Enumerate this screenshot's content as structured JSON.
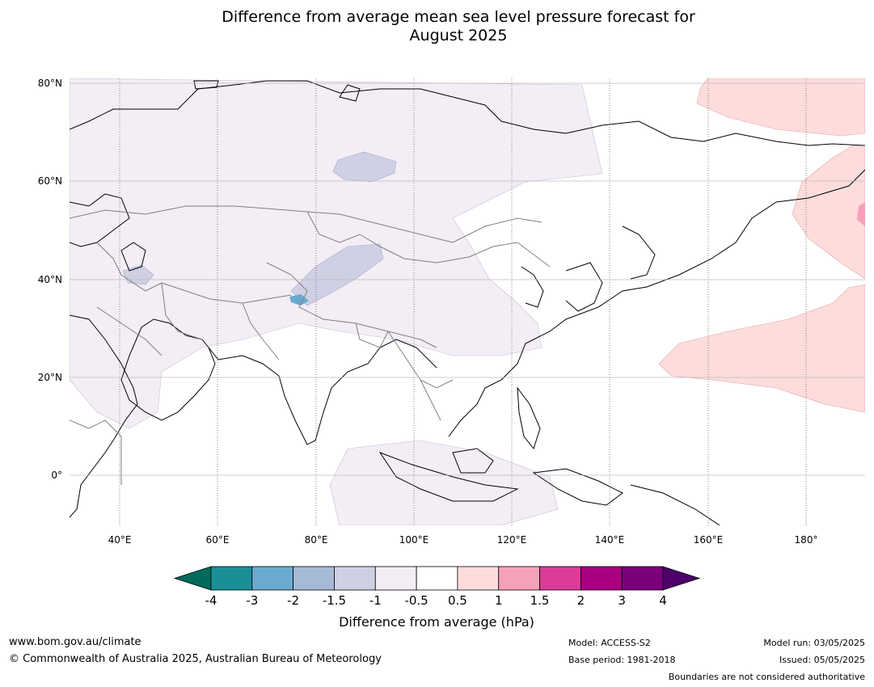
{
  "title_line1": "Difference from average mean sea level pressure forecast for",
  "title_line2": "August 2025",
  "map": {
    "lat_labels": [
      "80°N",
      "60°N",
      "40°N",
      "20°N",
      "0°"
    ],
    "lon_labels": [
      "40°E",
      "60°E",
      "80°E",
      "100°E",
      "120°E",
      "140°E",
      "160°E",
      "180°"
    ],
    "anomaly_regions": [
      {
        "name": "eurasia-negative",
        "level": "-0.5 to -1"
      },
      {
        "name": "siberia-negative",
        "level": "-1 to -1.5"
      },
      {
        "name": "central-asia-negative",
        "level": "-1 to -1.5"
      },
      {
        "name": "tibet-negative",
        "level": "-2 to -3"
      },
      {
        "name": "north-pacific-positive",
        "level": "0.5 to 1"
      },
      {
        "name": "western-pacific-positive",
        "level": "0.5 to 1"
      },
      {
        "name": "indian-ocean-negative",
        "level": "-0.5 to -1"
      }
    ]
  },
  "colorbar": {
    "title": "Difference from average (hPa)",
    "tick_labels": [
      "-4",
      "-3",
      "-2",
      "-1.5",
      "-1",
      "-0.5",
      "0.5",
      "1",
      "1.5",
      "2",
      "3",
      "4"
    ],
    "colors": [
      "#006a5c",
      "#1b8f98",
      "#6aaad0",
      "#a6b9d6",
      "#cfd0e4",
      "#f3edf5",
      "#ffffff",
      "#fddcdc",
      "#f7a0b9",
      "#dc3c99",
      "#a90081",
      "#7c007c",
      "#4d006a"
    ]
  },
  "footer": {
    "website": "www.bom.gov.au/climate",
    "copyright": "© Commonwealth of Australia 2025, Australian Bureau of Meteorology",
    "model": "Model: ACCESS-S2",
    "base_period": "Base period: 1981-2018",
    "model_run": "Model run: 03/05/2025",
    "issued": "Issued: 05/05/2025",
    "disclaimer": "Boundaries are not considered authoritative"
  }
}
